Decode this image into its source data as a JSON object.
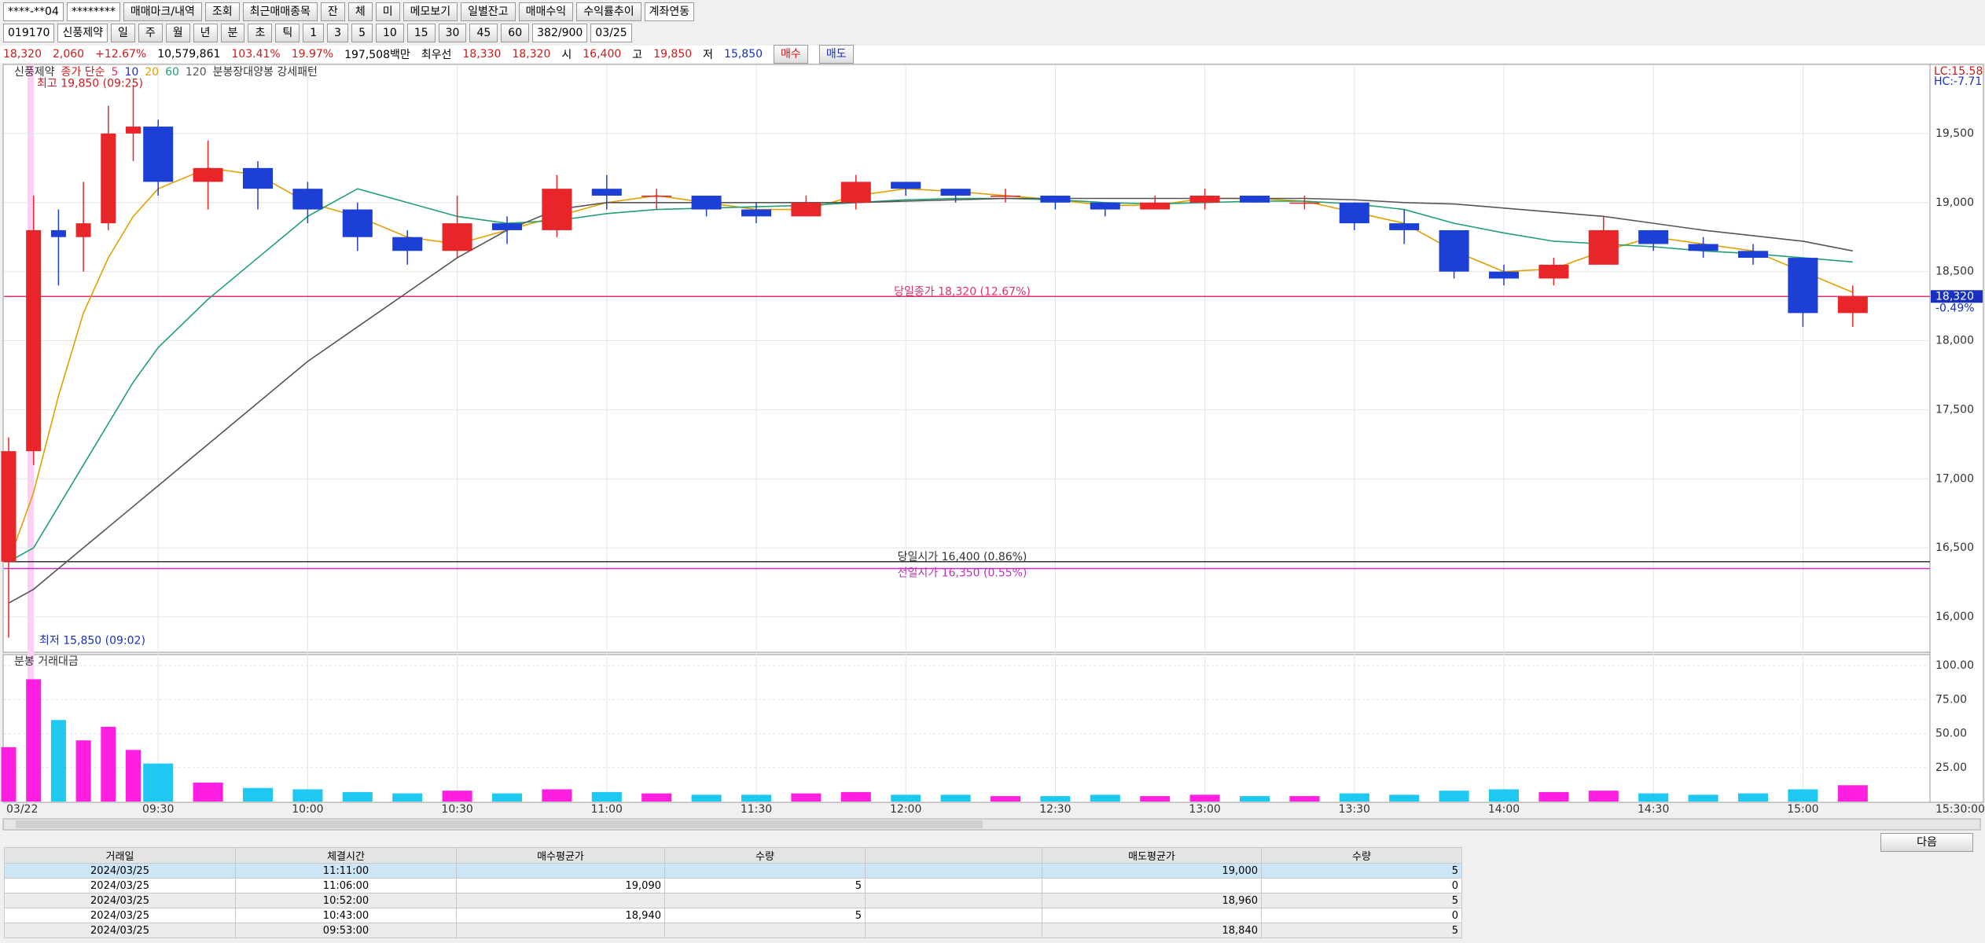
{
  "toolbar": {
    "account": "****-**04",
    "password": "********",
    "buttons": [
      "매매마크/내역",
      "조회",
      "최근매매종목",
      "잔",
      "체",
      "미",
      "메모보기",
      "일별잔고",
      "매매수익",
      "수익률추이"
    ],
    "link_checkbox": "계좌연동"
  },
  "symbol_bar": {
    "code": "019170",
    "name": "신풍제약",
    "periods": [
      "일",
      "주",
      "월",
      "년",
      "분",
      "초",
      "틱"
    ],
    "intervals": [
      "1",
      "3",
      "5",
      "10",
      "15",
      "30",
      "45",
      "60"
    ],
    "count": "382/900",
    "date": "03/25"
  },
  "quote": {
    "price": "18,320",
    "change": "2,060",
    "change_pct": "+12.67%",
    "volume": "10,579,861",
    "volume_ratio": "103.41%",
    "turnover_rate": "19.97%",
    "amount": "197,508백만",
    "best_label": "최우선",
    "ask": "18,330",
    "bid": "18,320",
    "open_label": "시",
    "open": "16,400",
    "high_label": "고",
    "high": "19,850",
    "low_label": "저",
    "low": "15,850",
    "buy_button": "매수",
    "sell_button": "매도"
  },
  "chart_data": {
    "type": "candlestick",
    "legend": {
      "name": "신풍제약",
      "ma_label": "종가 단순",
      "ma_periods": [
        {
          "label": "5",
          "color": "#e0306a"
        },
        {
          "label": "10",
          "color": "#2030c0"
        },
        {
          "label": "20",
          "color": "#e0a000"
        },
        {
          "label": "60",
          "color": "#20a070"
        },
        {
          "label": "120",
          "color": "#555555"
        }
      ],
      "pattern": "분봉장대양봉 강세패턴"
    },
    "x": [
      "09:00",
      "09:05",
      "09:10",
      "09:15",
      "09:20",
      "09:25",
      "09:30",
      "09:40",
      "09:50",
      "10:00",
      "10:10",
      "10:20",
      "10:30",
      "10:40",
      "10:50",
      "11:00",
      "11:10",
      "11:20",
      "11:30",
      "11:40",
      "11:50",
      "12:00",
      "12:10",
      "12:20",
      "12:30",
      "12:40",
      "12:50",
      "13:00",
      "13:10",
      "13:20",
      "13:30",
      "13:40",
      "13:50",
      "14:00",
      "14:10",
      "14:20",
      "14:30",
      "14:40",
      "14:50",
      "15:00",
      "15:10"
    ],
    "open": [
      16400,
      17200,
      18800,
      18750,
      18850,
      19500,
      19550,
      19150,
      19250,
      19100,
      18950,
      18750,
      18650,
      18850,
      18800,
      19100,
      19050,
      19050,
      18950,
      18900,
      19000,
      19150,
      19100,
      19050,
      19050,
      19000,
      18950,
      19000,
      19050,
      19000,
      19000,
      18850,
      18800,
      18500,
      18450,
      18550,
      18800,
      18700,
      18650,
      18600,
      18200
    ],
    "high": [
      17300,
      19050,
      18950,
      19150,
      19700,
      19850,
      19600,
      19450,
      19300,
      19150,
      19000,
      18800,
      19050,
      18900,
      19200,
      19200,
      19100,
      19050,
      19000,
      19050,
      19200,
      19150,
      19100,
      19100,
      19050,
      19000,
      19050,
      19100,
      19050,
      19050,
      19000,
      18950,
      18800,
      18550,
      18600,
      18900,
      18800,
      18750,
      18700,
      18600,
      18400
    ],
    "low": [
      15850,
      17100,
      18400,
      18500,
      18800,
      19300,
      19050,
      18950,
      18950,
      18850,
      18650,
      18550,
      18600,
      18700,
      18750,
      18950,
      18950,
      18900,
      18850,
      18900,
      18950,
      19050,
      19000,
      19000,
      18950,
      18900,
      18950,
      18950,
      19000,
      18950,
      18800,
      18700,
      18450,
      18400,
      18400,
      18550,
      18650,
      18600,
      18550,
      18100,
      18100
    ],
    "close": [
      17200,
      18800,
      18750,
      18850,
      19500,
      19550,
      19150,
      19250,
      19100,
      18950,
      18750,
      18650,
      18850,
      18800,
      19100,
      19050,
      19050,
      18950,
      18900,
      19000,
      19150,
      19100,
      19050,
      19050,
      19000,
      18950,
      19000,
      19050,
      19000,
      19000,
      18850,
      18800,
      18500,
      18450,
      18550,
      18800,
      18700,
      18650,
      18600,
      18200,
      18320
    ],
    "up_color": "#e8262a",
    "down_color": "#1c3fd6",
    "ma_series": [
      {
        "color": "#e0a000",
        "values": [
          16400,
          16900,
          17600,
          18200,
          18600,
          18900,
          19100,
          19250,
          19200,
          19000,
          18900,
          18750,
          18700,
          18800,
          18900,
          19000,
          19050,
          19000,
          18950,
          18950,
          19050,
          19100,
          19080,
          19050,
          19020,
          18980,
          18980,
          19030,
          19030,
          19010,
          18930,
          18850,
          18650,
          18500,
          18520,
          18650,
          18750,
          18700,
          18650,
          18500,
          18350
        ]
      },
      {
        "color": "#20a070",
        "values": [
          16400,
          16500,
          16800,
          17100,
          17400,
          17700,
          17950,
          18300,
          18600,
          18900,
          19100,
          19000,
          18900,
          18850,
          18870,
          18920,
          18950,
          18960,
          18970,
          18980,
          19000,
          19020,
          19030,
          19030,
          19020,
          19000,
          18990,
          19000,
          19010,
          19010,
          18990,
          18950,
          18850,
          18780,
          18720,
          18700,
          18680,
          18650,
          18630,
          18600,
          18570
        ]
      },
      {
        "color": "#555555",
        "values": [
          16100,
          16200,
          16350,
          16500,
          16650,
          16800,
          16950,
          17250,
          17550,
          17850,
          18100,
          18350,
          18600,
          18800,
          18950,
          19000,
          19000,
          19000,
          19000,
          19000,
          19000,
          19010,
          19020,
          19030,
          19030,
          19030,
          19030,
          19030,
          19030,
          19030,
          19020,
          19000,
          18990,
          18960,
          18930,
          18900,
          18850,
          18800,
          18760,
          18720,
          18650
        ]
      }
    ],
    "ylim": [
      15750,
      20000
    ],
    "yticks": [
      {
        "value": 16000,
        "label": "16,000"
      },
      {
        "value": 16500,
        "label": "16,500"
      },
      {
        "value": 17000,
        "label": "17,000"
      },
      {
        "value": 17500,
        "label": "17,500"
      },
      {
        "value": 18000,
        "label": "18,000"
      },
      {
        "value": 18500,
        "label": "18,500"
      },
      {
        "value": 19000,
        "label": "19,000"
      },
      {
        "value": 19500,
        "label": "19,500"
      }
    ],
    "reference_lines": [
      {
        "label": "당일종가 18,320 (12.67%)",
        "value": 18320,
        "color": "#e0306a"
      },
      {
        "label": "당일시가 16,400 (0.86%)",
        "value": 16400,
        "color": "#333333"
      },
      {
        "label": "전일시가 16,350 (0.55%)",
        "value": 16350,
        "color": "#c030c0"
      }
    ],
    "high_annotation": {
      "label": "최고 19,850 (09:25)",
      "value": 19850
    },
    "low_annotation": {
      "label": "최저 15,850 (09:02)",
      "value": 15850
    },
    "lc_label": "LC:15.58",
    "hc_label": "HC:-7.71",
    "last_change": "-0.49%",
    "volume_title": "분봉 거래대금",
    "volume": [
      40,
      90,
      60,
      45,
      55,
      38,
      28,
      14,
      10,
      9,
      7,
      6,
      8,
      6,
      9,
      7,
      6,
      5,
      5,
      6,
      7,
      5,
      5,
      4,
      4,
      5,
      4,
      5,
      4,
      4,
      6,
      5,
      8,
      9,
      7,
      8,
      6,
      5,
      6,
      9,
      12
    ],
    "volume_up_color": "#ff1fe0",
    "volume_down_color": "#1fc8f0",
    "volume_ylim": [
      0,
      107
    ],
    "volume_yticks": [
      {
        "value": 25,
        "label": "25.00"
      },
      {
        "value": 50,
        "label": "50.00"
      },
      {
        "value": 75,
        "label": "75.00"
      },
      {
        "value": 100,
        "label": "100.00"
      }
    ],
    "start_date": "03/22",
    "end_time": "15:30:00",
    "time_labels": [
      "09:30",
      "10:00",
      "10:30",
      "11:00",
      "11:30",
      "12:00",
      "12:30",
      "13:00",
      "13:30",
      "14:00",
      "14:30",
      "15:00"
    ]
  },
  "table": {
    "headers": [
      "거래일",
      "체결시간",
      "매수평균가",
      "수량",
      "매도평균가",
      "수량"
    ],
    "rows": [
      {
        "date": "2024/03/25",
        "time": "11:11:00",
        "sell_price": "19,000",
        "sell_qty": "5"
      },
      {
        "date": "2024/03/25",
        "time": "11:06:00",
        "buy_price": "19,090",
        "buy_qty": "5",
        "sell_qty": "0"
      },
      {
        "date": "2024/03/25",
        "time": "10:52:00",
        "sell_price": "18,960",
        "sell_qty": "5"
      },
      {
        "date": "2024/03/25",
        "time": "10:43:00",
        "buy_price": "18,940",
        "buy_qty": "5",
        "sell_qty": "0"
      },
      {
        "date": "2024/03/25",
        "time": "09:53:00",
        "sell_price": "18,840",
        "sell_qty": "5"
      }
    ]
  },
  "next_button": "다음"
}
